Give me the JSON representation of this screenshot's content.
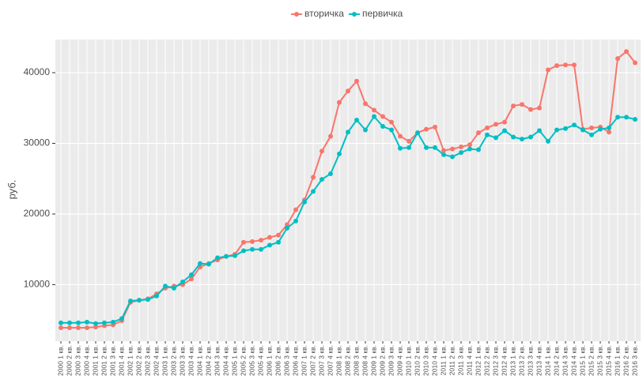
{
  "chart_data": {
    "type": "line",
    "y_label": "руб.",
    "categories": [
      "2000 1 кв.",
      "2000 2 кв.",
      "2000 3 кв.",
      "2000 4 кв.",
      "2001 1 кв.",
      "2001 2 кв.",
      "2001 3 кв.",
      "2001 4 кв.",
      "2002 1 кв.",
      "2002 2 кв.",
      "2002 3 кв.",
      "2002 4 кв.",
      "2003 1 кв.",
      "2003 2 кв.",
      "2003 3 кв.",
      "2003 4 кв.",
      "2004 1 кв.",
      "2004 2 кв.",
      "2004 3 кв.",
      "2004 4 кв.",
      "2005 1 кв.",
      "2005 2 кв.",
      "2005 3 кв.",
      "2005 4 кв.",
      "2006 1 кв.",
      "2006 2 кв.",
      "2006 3 кв.",
      "2006 4 кв.",
      "2007 1 кв.",
      "2007 2 кв.",
      "2007 3 кв.",
      "2007 4 кв.",
      "2008 1 кв.",
      "2008 2 кв.",
      "2008 3 кв.",
      "2008 4 кв.",
      "2009 1 кв.",
      "2009 2 кв.",
      "2009 3 кв.",
      "2009 4 кв.",
      "2010 1 кв.",
      "2010 2 кв.",
      "2010 3 кв.",
      "2010 4 кв.",
      "2011 1 кв.",
      "2011 2 кв.",
      "2011 3 кв.",
      "2011 4 кв.",
      "2012 1 кв.",
      "2012 2 кв.",
      "2012 3 кв.",
      "2012 4 кв.",
      "2013 1 кв.",
      "2013 2 кв.",
      "2013 3 кв.",
      "2013 4 кв.",
      "2014 1 кв.",
      "2014 2 кв.",
      "2014 3 кв.",
      "2014 4 кв.",
      "2015 1 кв.",
      "2015 2 кв.",
      "2015 3 кв.",
      "2015 4 кв.",
      "2016 1 кв.",
      "2016 2 кв.",
      "2016 3 кв."
    ],
    "series": [
      {
        "name": "вторичка",
        "color": "#F8766D",
        "values": [
          3900,
          3900,
          3900,
          3900,
          4000,
          4200,
          4300,
          4900,
          7500,
          7800,
          8000,
          8700,
          9500,
          9800,
          10000,
          10800,
          12500,
          13000,
          13500,
          14000,
          14300,
          16000,
          16100,
          16300,
          16700,
          17000,
          18500,
          20600,
          22000,
          25200,
          28900,
          31000,
          35800,
          37400,
          38800,
          35600,
          34700,
          33800,
          33000,
          31000,
          30300,
          31500,
          32000,
          32300,
          29000,
          29200,
          29500,
          29800,
          31500,
          32200,
          32700,
          33000,
          35300,
          35500,
          34800,
          35000,
          40400,
          41000,
          41100,
          41100,
          32000,
          32200,
          32300,
          31600,
          42000,
          43000,
          41400
        ]
      },
      {
        "name": "первичка",
        "color": "#00BFC4",
        "values": [
          4600,
          4600,
          4600,
          4700,
          4500,
          4600,
          4700,
          5200,
          7700,
          7800,
          7900,
          8400,
          9800,
          9500,
          10400,
          11400,
          13000,
          12900,
          13800,
          14000,
          14100,
          14800,
          15000,
          15000,
          15600,
          16000,
          18000,
          19000,
          21700,
          23200,
          24900,
          25700,
          28500,
          31600,
          33300,
          31900,
          33800,
          32400,
          31900,
          29300,
          29400,
          31500,
          29400,
          29400,
          28400,
          28100,
          28700,
          29200,
          29100,
          31200,
          30800,
          31800,
          30900,
          30600,
          30900,
          31800,
          30300,
          31900,
          32100,
          32600,
          31900,
          31200,
          32000,
          32200,
          33700,
          33700,
          33400
        ]
      }
    ],
    "ylim": [
      2000,
      44700
    ],
    "yticks": [
      10000,
      20000,
      30000,
      40000
    ],
    "grid": true,
    "legend": "top"
  }
}
